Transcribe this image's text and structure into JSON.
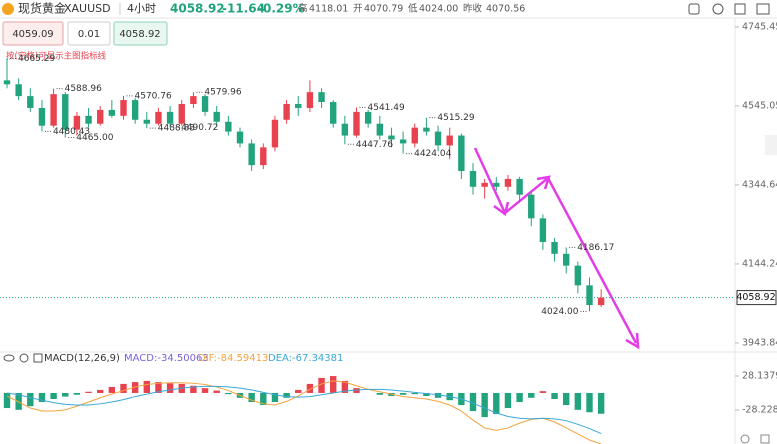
{
  "header": {
    "name": "现货黄金",
    "symbol": "XAUUSD",
    "timeframe": "4小时",
    "price": "4058.92",
    "change": "-11.64",
    "change_pct": "-0.29%",
    "stats": [
      {
        "label": "高",
        "value": "4118.01"
      },
      {
        "label": "开",
        "value": "4070.79"
      },
      {
        "label": "低",
        "value": "4024.00"
      },
      {
        "label": "昨收",
        "value": "4070.56"
      }
    ]
  },
  "order": {
    "sell": "4059.09",
    "lot": "0.01",
    "buy": "4058.92"
  },
  "hint": "按(空格)可显示主图指标线",
  "chart_data": [
    {
      "type": "candlestick",
      "up_color": "#e8424e",
      "down_color": "#21a47d",
      "ylim": [
        3926,
        4758
      ],
      "yticks": [
        4745.45,
        4545.05,
        4344.64,
        4144.24,
        3943.84
      ],
      "last_price": 4058.92,
      "ohlc": [
        [
          4610,
          4665.29,
          4590,
          4600
        ],
        [
          4600,
          4615,
          4560,
          4570
        ],
        [
          4570,
          4590,
          4530,
          4540
        ],
        [
          4540,
          4560,
          4480.43,
          4495
        ],
        [
          4495,
          4588.96,
          4490,
          4575
        ],
        [
          4575,
          4580,
          4465,
          4485
        ],
        [
          4485,
          4530,
          4470,
          4520
        ],
        [
          4520,
          4540,
          4490,
          4500
        ],
        [
          4500,
          4545,
          4495,
          4535
        ],
        [
          4535,
          4560,
          4515,
          4520
        ],
        [
          4520,
          4570.76,
          4510,
          4560
        ],
        [
          4560,
          4565,
          4500,
          4510
        ],
        [
          4510,
          4530,
          4488.83,
          4500
        ],
        [
          4500,
          4540,
          4495,
          4530
        ],
        [
          4530,
          4545,
          4490.72,
          4500
        ],
        [
          4500,
          4560,
          4495,
          4550
        ],
        [
          4550,
          4579.96,
          4540,
          4570
        ],
        [
          4570,
          4575,
          4520,
          4530
        ],
        [
          4530,
          4545,
          4495,
          4505
        ],
        [
          4505,
          4520,
          4470,
          4480
        ],
        [
          4480,
          4490,
          4440,
          4450
        ],
        [
          4450,
          4460,
          4380,
          4395
        ],
        [
          4395,
          4450,
          4385,
          4440
        ],
        [
          4440,
          4520,
          4430,
          4510
        ],
        [
          4510,
          4560,
          4500,
          4550
        ],
        [
          4550,
          4570,
          4520,
          4540
        ],
        [
          4540,
          4610,
          4530,
          4580
        ],
        [
          4580,
          4590,
          4540,
          4555
        ],
        [
          4555,
          4560,
          4490,
          4500
        ],
        [
          4500,
          4520,
          4447.76,
          4470
        ],
        [
          4470,
          4541.49,
          4465,
          4530
        ],
        [
          4530,
          4535,
          4490,
          4500
        ],
        [
          4500,
          4520,
          4460,
          4470
        ],
        [
          4470,
          4490,
          4440,
          4460
        ],
        [
          4460,
          4480,
          4424.04,
          4450
        ],
        [
          4450,
          4500,
          4440,
          4490
        ],
        [
          4490,
          4515.29,
          4470,
          4480
        ],
        [
          4480,
          4495,
          4430,
          4445
        ],
        [
          4445,
          4490,
          4410,
          4470
        ],
        [
          4470,
          4475,
          4360,
          4380
        ],
        [
          4380,
          4400,
          4320,
          4340
        ],
        [
          4340,
          4360,
          4310,
          4350
        ],
        [
          4350,
          4365,
          4330,
          4340
        ],
        [
          4340,
          4370,
          4330,
          4360
        ],
        [
          4360,
          4365,
          4300,
          4320
        ],
        [
          4320,
          4330,
          4240,
          4260
        ],
        [
          4260,
          4270,
          4180,
          4200
        ],
        [
          4200,
          4210,
          4150,
          4170
        ],
        [
          4170,
          4186.17,
          4120,
          4140
        ],
        [
          4140,
          4150,
          4070,
          4090
        ],
        [
          4090,
          4110,
          4024,
          4040
        ],
        [
          4040,
          4080,
          4035,
          4058.92
        ]
      ],
      "annotations": [
        4665.29,
        4480.43,
        4588.96,
        {
          "value": 4465,
          "label": "4465.00"
        },
        4570.76,
        4488.83,
        4490.72,
        4579.96,
        4447.76,
        4541.49,
        4424.04,
        4515.29,
        4186.17,
        {
          "value": 4024,
          "label": "4024.00"
        }
      ]
    },
    {
      "type": "macd",
      "title": "MACD(12,26,9)",
      "ylim": [
        -83,
        51.35
      ],
      "yticks": [
        28.13798,
        -28.22808
      ],
      "up_color": "#e8424e",
      "down_color": "#21a47d",
      "series": [
        {
          "name": "MACD:-34.50063",
          "color": "#7b61d9",
          "values": [
            -25,
            -28,
            -22,
            -15,
            -10,
            -6,
            -3,
            2,
            5,
            10,
            15,
            18,
            20,
            18,
            16,
            15,
            12,
            8,
            4,
            -2,
            -8,
            -15,
            -20,
            -15,
            -8,
            5,
            15,
            25,
            28,
            20,
            8,
            0,
            -3,
            -5,
            -3,
            -2,
            -5,
            -8,
            -12,
            -20,
            -30,
            -40,
            -35,
            -25,
            -15,
            -8,
            3,
            -10,
            -20,
            -28,
            -32,
            -34.50063
          ]
        },
        {
          "name": "DIF:-84.59413",
          "color": "#f5a33c",
          "values": [
            -5,
            -15,
            -25,
            -30,
            -30,
            -28,
            -22,
            -15,
            -8,
            -2,
            4,
            10,
            14,
            16,
            17,
            17,
            16,
            14,
            10,
            4,
            -4,
            -12,
            -18,
            -20,
            -14,
            -5,
            6,
            15,
            20,
            18,
            12,
            6,
            2,
            -2,
            -6,
            -8,
            -10,
            -14,
            -20,
            -30,
            -45,
            -58,
            -62,
            -58,
            -50,
            -44,
            -42,
            -48,
            -58,
            -68,
            -78,
            -84.59413
          ]
        },
        {
          "name": "DEA:-67.34381",
          "color": "#3aa7d8",
          "values": [
            0,
            -3,
            -8,
            -12,
            -16,
            -19,
            -20,
            -20,
            -18,
            -15,
            -11,
            -6,
            -2,
            2,
            5,
            8,
            10,
            11,
            11,
            10,
            8,
            5,
            1,
            -3,
            -6,
            -7,
            -6,
            -3,
            0,
            3,
            5,
            6,
            6,
            5,
            3,
            1,
            -1,
            -3,
            -6,
            -10,
            -17,
            -25,
            -33,
            -39,
            -42,
            -43,
            -42,
            -43,
            -46,
            -52,
            -59,
            -67.34381
          ]
        }
      ]
    }
  ]
}
